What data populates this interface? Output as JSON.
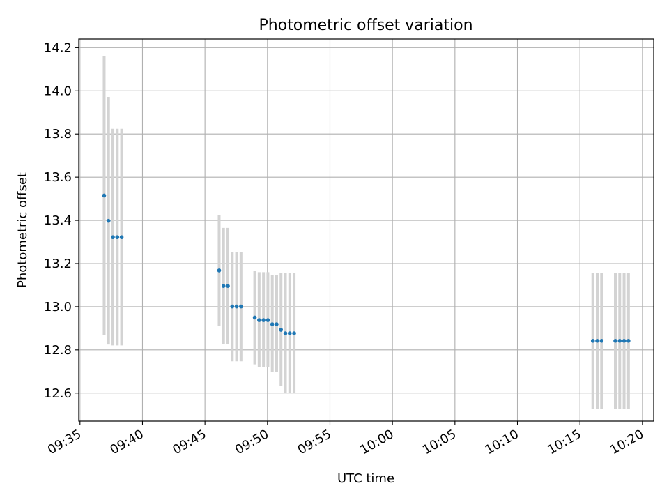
{
  "chart_data": {
    "type": "scatter",
    "title": "Photometric offset variation",
    "xlabel": "UTC time",
    "ylabel": "Photometric offset",
    "x_tick_labels": [
      "09:35",
      "09:40",
      "09:45",
      "09:50",
      "09:55",
      "10:00",
      "10:05",
      "10:10",
      "10:15",
      "10:20"
    ],
    "x_tick_minutes": [
      35,
      40,
      45,
      50,
      55,
      60,
      65,
      70,
      75,
      80
    ],
    "xlim_minutes_after_0900": [
      34.9,
      80.9
    ],
    "y_ticks": [
      12.6,
      12.8,
      13.0,
      13.2,
      13.4,
      13.6,
      13.8,
      14.0,
      14.2
    ],
    "y_tick_labels": [
      "12.6",
      "12.8",
      "13.0",
      "13.2",
      "13.4",
      "13.6",
      "13.8",
      "14.0",
      "14.2"
    ],
    "ylim": [
      12.47,
      14.24
    ],
    "grid": true,
    "point_color": "#1f77b4",
    "errorbar_color": "#d3d3d3",
    "points": [
      {
        "time": "09:36:56",
        "y": 13.515,
        "low": 12.868,
        "high": 14.161
      },
      {
        "time": "09:37:17",
        "y": 13.398,
        "low": 12.825,
        "high": 13.972
      },
      {
        "time": "09:37:38",
        "y": 13.322,
        "low": 12.821,
        "high": 13.824
      },
      {
        "time": "09:37:59",
        "y": 13.322,
        "low": 12.821,
        "high": 13.824
      },
      {
        "time": "09:38:20",
        "y": 13.322,
        "low": 12.821,
        "high": 13.824
      },
      {
        "time": "09:46:08",
        "y": 13.168,
        "low": 12.91,
        "high": 13.425
      },
      {
        "time": "09:46:29",
        "y": 13.096,
        "low": 12.827,
        "high": 13.365
      },
      {
        "time": "09:46:50",
        "y": 13.096,
        "low": 12.827,
        "high": 13.365
      },
      {
        "time": "09:47:11",
        "y": 13.001,
        "low": 12.747,
        "high": 13.254
      },
      {
        "time": "09:47:32",
        "y": 13.001,
        "low": 12.747,
        "high": 13.254
      },
      {
        "time": "09:47:53",
        "y": 13.001,
        "low": 12.747,
        "high": 13.254
      },
      {
        "time": "09:48:59",
        "y": 12.95,
        "low": 12.733,
        "high": 13.166
      },
      {
        "time": "09:49:20",
        "y": 12.938,
        "low": 12.722,
        "high": 13.16
      },
      {
        "time": "09:49:41",
        "y": 12.938,
        "low": 12.722,
        "high": 13.16
      },
      {
        "time": "09:50:02",
        "y": 12.938,
        "low": 12.722,
        "high": 13.16
      },
      {
        "time": "09:50:23",
        "y": 12.919,
        "low": 12.697,
        "high": 13.145
      },
      {
        "time": "09:50:44",
        "y": 12.919,
        "low": 12.697,
        "high": 13.145
      },
      {
        "time": "09:51:05",
        "y": 12.893,
        "low": 12.634,
        "high": 13.157
      },
      {
        "time": "09:51:26",
        "y": 12.877,
        "low": 12.598,
        "high": 13.157
      },
      {
        "time": "09:51:47",
        "y": 12.877,
        "low": 12.598,
        "high": 13.157
      },
      {
        "time": "09:52:08",
        "y": 12.877,
        "low": 12.598,
        "high": 13.157
      },
      {
        "time": "10:16:02",
        "y": 12.842,
        "low": 12.526,
        "high": 13.157
      },
      {
        "time": "10:16:23",
        "y": 12.842,
        "low": 12.526,
        "high": 13.157
      },
      {
        "time": "10:16:44",
        "y": 12.842,
        "low": 12.526,
        "high": 13.157
      },
      {
        "time": "10:17:50",
        "y": 12.842,
        "low": 12.526,
        "high": 13.157
      },
      {
        "time": "10:18:11",
        "y": 12.842,
        "low": 12.526,
        "high": 13.157
      },
      {
        "time": "10:18:32",
        "y": 12.842,
        "low": 12.526,
        "high": 13.157
      },
      {
        "time": "10:18:53",
        "y": 12.842,
        "low": 12.526,
        "high": 13.157
      }
    ]
  }
}
